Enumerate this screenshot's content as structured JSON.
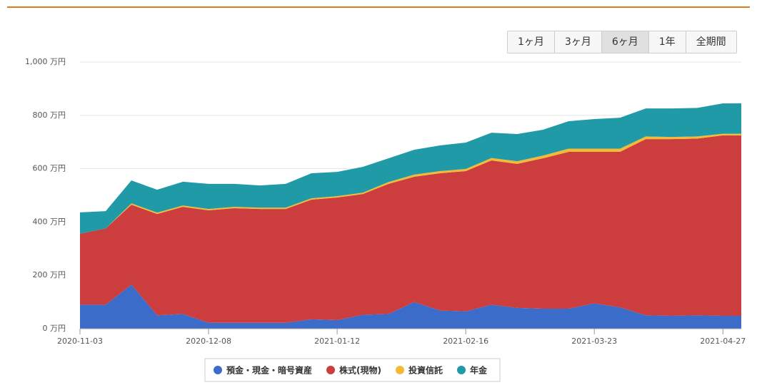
{
  "range_buttons": {
    "labels": [
      "1ヶ月",
      "3ヶ月",
      "6ヶ月",
      "1年",
      "全期間"
    ],
    "active": 2
  },
  "chart_data": {
    "type": "stacked-area",
    "x": [
      "2020-11-03",
      "2020-11-10",
      "2020-11-17",
      "2020-11-24",
      "2020-12-01",
      "2020-12-08",
      "2020-12-15",
      "2020-12-22",
      "2020-12-29",
      "2021-01-05",
      "2021-01-12",
      "2021-01-19",
      "2021-01-26",
      "2021-02-02",
      "2021-02-09",
      "2021-02-16",
      "2021-02-23",
      "2021-03-02",
      "2021-03-09",
      "2021-03-16",
      "2021-03-23",
      "2021-03-30",
      "2021-04-06",
      "2021-04-13",
      "2021-04-20",
      "2021-04-27",
      "2021-05-02"
    ],
    "series": [
      {
        "name": "預金・現金・暗号資産",
        "color": "#3b6cc9",
        "values": [
          90,
          90,
          165,
          50,
          55,
          22,
          22,
          22,
          22,
          35,
          32,
          52,
          55,
          100,
          68,
          65,
          90,
          78,
          75,
          75,
          95,
          80,
          50,
          48,
          50,
          48,
          48
        ]
      },
      {
        "name": "株式(現物)",
        "color": "#cc3d3d",
        "values": [
          266,
          286,
          300,
          380,
          402,
          422,
          430,
          427,
          427,
          449,
          460,
          453,
          488,
          470,
          515,
          526,
          541,
          540,
          564,
          588,
          568,
          583,
          661,
          663,
          663,
          677,
          677
        ]
      },
      {
        "name": "投資信託",
        "color": "#f5ba35",
        "values": [
          0,
          0,
          5,
          5,
          5,
          5,
          5,
          5,
          5,
          5,
          5,
          5,
          7,
          8,
          8,
          8,
          9,
          10,
          10,
          12,
          12,
          12,
          10,
          8,
          8,
          6,
          6
        ]
      },
      {
        "name": "年金",
        "color": "#1f9aa6",
        "values": [
          80,
          65,
          86,
          86,
          89,
          94,
          86,
          83,
          89,
          94,
          91,
          97,
          89,
          93,
          96,
          99,
          95,
          102,
          97,
          103,
          111,
          116,
          105,
          107,
          107,
          114,
          114
        ]
      }
    ],
    "xlim": [
      "2020-11-03",
      "2021-05-02"
    ],
    "xticks": [
      "2020-11-03",
      "2020-12-08",
      "2021-01-12",
      "2021-02-16",
      "2021-03-23",
      "2021-04-27"
    ],
    "ylim": [
      0,
      1000
    ],
    "yticks": [
      {
        "value": 0,
        "label": "0 万円"
      },
      {
        "value": 200,
        "label": "200 万円"
      },
      {
        "value": 400,
        "label": "400 万円"
      },
      {
        "value": 600,
        "label": "600 万円"
      },
      {
        "value": 800,
        "label": "800 万円"
      },
      {
        "value": 1000,
        "label": "1,000 万円"
      }
    ],
    "grid": true
  }
}
